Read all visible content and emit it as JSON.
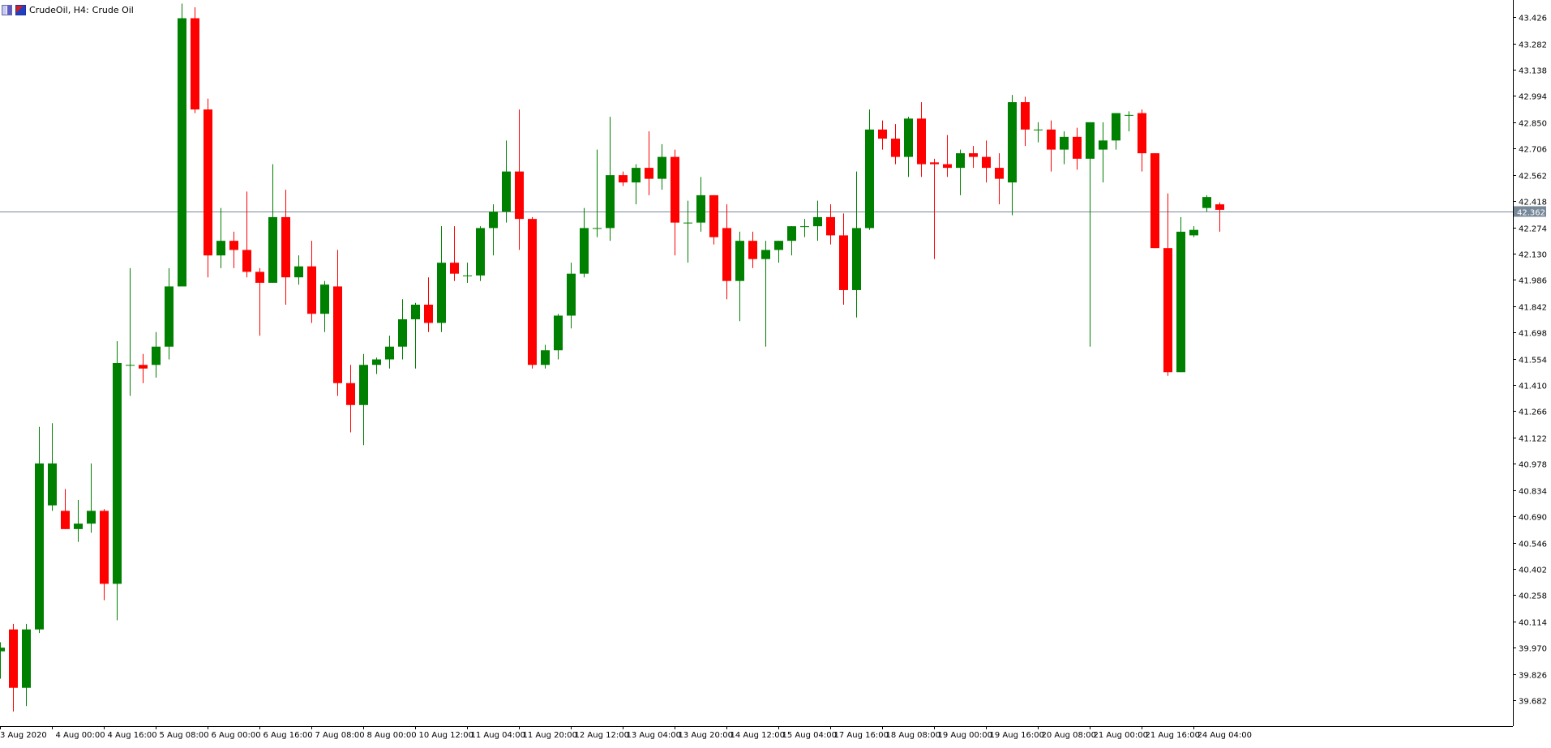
{
  "header": {
    "symbol": "CrudeOil, H4:",
    "description": "Crude Oil"
  },
  "current_price_label": "42.362",
  "colors": {
    "bull": "#008000",
    "bear": "#ff0000",
    "axis": "#000000",
    "price_line": "#778899",
    "price_label_bg": "#778899",
    "background": "#ffffff"
  },
  "chart_data": {
    "type": "candlestick",
    "title": "",
    "timeframe": "H4",
    "ylim": [
      39.54,
      43.52
    ],
    "y_ticks": [
      "43.426",
      "43.282",
      "43.138",
      "42.994",
      "42.850",
      "42.706",
      "42.562",
      "42.418",
      "42.274",
      "42.130",
      "41.986",
      "41.842",
      "41.698",
      "41.554",
      "41.410",
      "41.266",
      "41.122",
      "40.978",
      "40.834",
      "40.690",
      "40.546",
      "40.402",
      "40.258",
      "40.114",
      "39.970",
      "39.826",
      "39.682"
    ],
    "x_ticks": [
      {
        "index": 0,
        "label": "3 Aug 2020"
      },
      {
        "index": 4,
        "label": "4 Aug 00:00"
      },
      {
        "index": 8,
        "label": "4 Aug 16:00"
      },
      {
        "index": 12,
        "label": "5 Aug 08:00"
      },
      {
        "index": 16,
        "label": "6 Aug 00:00"
      },
      {
        "index": 20,
        "label": "6 Aug 16:00"
      },
      {
        "index": 24,
        "label": "7 Aug 08:00"
      },
      {
        "index": 28,
        "label": "8 Aug 00:00"
      },
      {
        "index": 32,
        "label": "10 Aug 12:00"
      },
      {
        "index": 36,
        "label": "11 Aug 04:00"
      },
      {
        "index": 40,
        "label": "11 Aug 20:00"
      },
      {
        "index": 44,
        "label": "12 Aug 12:00"
      },
      {
        "index": 48,
        "label": "13 Aug 04:00"
      },
      {
        "index": 52,
        "label": "13 Aug 20:00"
      },
      {
        "index": 56,
        "label": "14 Aug 12:00"
      },
      {
        "index": 60,
        "label": "15 Aug 04:00"
      },
      {
        "index": 64,
        "label": "17 Aug 16:00"
      },
      {
        "index": 68,
        "label": "18 Aug 08:00"
      },
      {
        "index": 72,
        "label": "19 Aug 00:00"
      },
      {
        "index": 76,
        "label": "19 Aug 16:00"
      },
      {
        "index": 80,
        "label": "20 Aug 08:00"
      },
      {
        "index": 84,
        "label": "21 Aug 00:00"
      },
      {
        "index": 88,
        "label": "21 Aug 16:00"
      },
      {
        "index": 92,
        "label": "24 Aug 04:00"
      }
    ],
    "current_price": 42.362,
    "candles": [
      {
        "o": 39.95,
        "h": 40.0,
        "l": 39.8,
        "c": 39.97
      },
      {
        "o": 40.07,
        "h": 40.1,
        "l": 39.62,
        "c": 39.75
      },
      {
        "o": 39.75,
        "h": 40.1,
        "l": 39.65,
        "c": 40.07
      },
      {
        "o": 40.07,
        "h": 41.18,
        "l": 40.05,
        "c": 40.98
      },
      {
        "o": 40.75,
        "h": 41.2,
        "l": 40.72,
        "c": 40.98
      },
      {
        "o": 40.72,
        "h": 40.84,
        "l": 40.62,
        "c": 40.62
      },
      {
        "o": 40.62,
        "h": 40.78,
        "l": 40.55,
        "c": 40.65
      },
      {
        "o": 40.65,
        "h": 40.98,
        "l": 40.6,
        "c": 40.72
      },
      {
        "o": 40.72,
        "h": 40.73,
        "l": 40.23,
        "c": 40.32
      },
      {
        "o": 40.32,
        "h": 41.65,
        "l": 40.12,
        "c": 41.53
      },
      {
        "o": 41.52,
        "h": 42.05,
        "l": 41.35,
        "c": 41.52
      },
      {
        "o": 41.52,
        "h": 41.58,
        "l": 41.42,
        "c": 41.5
      },
      {
        "o": 41.52,
        "h": 41.7,
        "l": 41.45,
        "c": 41.62
      },
      {
        "o": 41.62,
        "h": 42.05,
        "l": 41.55,
        "c": 41.95
      },
      {
        "o": 41.95,
        "h": 43.5,
        "l": 41.95,
        "c": 43.42
      },
      {
        "o": 43.42,
        "h": 43.48,
        "l": 42.9,
        "c": 42.92
      },
      {
        "o": 42.92,
        "h": 42.98,
        "l": 42.0,
        "c": 42.12
      },
      {
        "o": 42.12,
        "h": 42.38,
        "l": 42.05,
        "c": 42.2
      },
      {
        "o": 42.2,
        "h": 42.25,
        "l": 42.05,
        "c": 42.15
      },
      {
        "o": 42.15,
        "h": 42.47,
        "l": 42.0,
        "c": 42.03
      },
      {
        "o": 42.03,
        "h": 42.05,
        "l": 41.68,
        "c": 41.97
      },
      {
        "o": 41.97,
        "h": 42.62,
        "l": 41.97,
        "c": 42.33
      },
      {
        "o": 42.33,
        "h": 42.48,
        "l": 41.85,
        "c": 42.0
      },
      {
        "o": 42.0,
        "h": 42.12,
        "l": 41.96,
        "c": 42.06
      },
      {
        "o": 42.06,
        "h": 42.2,
        "l": 41.75,
        "c": 41.8
      },
      {
        "o": 41.8,
        "h": 41.98,
        "l": 41.7,
        "c": 41.96
      },
      {
        "o": 41.95,
        "h": 42.15,
        "l": 41.35,
        "c": 41.42
      },
      {
        "o": 41.42,
        "h": 41.52,
        "l": 41.15,
        "c": 41.3
      },
      {
        "o": 41.3,
        "h": 41.58,
        "l": 41.08,
        "c": 41.52
      },
      {
        "o": 41.52,
        "h": 41.56,
        "l": 41.47,
        "c": 41.55
      },
      {
        "o": 41.55,
        "h": 41.68,
        "l": 41.5,
        "c": 41.62
      },
      {
        "o": 41.62,
        "h": 41.88,
        "l": 41.55,
        "c": 41.77
      },
      {
        "o": 41.77,
        "h": 41.86,
        "l": 41.5,
        "c": 41.85
      },
      {
        "o": 41.85,
        "h": 42.0,
        "l": 41.7,
        "c": 41.75
      },
      {
        "o": 41.75,
        "h": 42.28,
        "l": 41.7,
        "c": 42.08
      },
      {
        "o": 42.08,
        "h": 42.28,
        "l": 41.98,
        "c": 42.02
      },
      {
        "o": 42.01,
        "h": 42.08,
        "l": 41.97,
        "c": 42.01
      },
      {
        "o": 42.01,
        "h": 42.28,
        "l": 41.98,
        "c": 42.27
      },
      {
        "o": 42.27,
        "h": 42.4,
        "l": 42.12,
        "c": 42.36
      },
      {
        "o": 42.36,
        "h": 42.75,
        "l": 42.3,
        "c": 42.58
      },
      {
        "o": 42.58,
        "h": 42.92,
        "l": 42.15,
        "c": 42.32
      },
      {
        "o": 42.32,
        "h": 42.33,
        "l": 41.5,
        "c": 41.52
      },
      {
        "o": 41.52,
        "h": 41.63,
        "l": 41.5,
        "c": 41.6
      },
      {
        "o": 41.6,
        "h": 41.8,
        "l": 41.55,
        "c": 41.79
      },
      {
        "o": 41.79,
        "h": 42.08,
        "l": 41.72,
        "c": 42.02
      },
      {
        "o": 42.02,
        "h": 42.38,
        "l": 42.0,
        "c": 42.27
      },
      {
        "o": 42.27,
        "h": 42.7,
        "l": 42.22,
        "c": 42.27
      },
      {
        "o": 42.27,
        "h": 42.88,
        "l": 42.2,
        "c": 42.56
      },
      {
        "o": 42.56,
        "h": 42.58,
        "l": 42.5,
        "c": 42.52
      },
      {
        "o": 42.52,
        "h": 42.62,
        "l": 42.4,
        "c": 42.6
      },
      {
        "o": 42.6,
        "h": 42.8,
        "l": 42.45,
        "c": 42.54
      },
      {
        "o": 42.54,
        "h": 42.73,
        "l": 42.48,
        "c": 42.66
      },
      {
        "o": 42.66,
        "h": 42.7,
        "l": 42.12,
        "c": 42.3
      },
      {
        "o": 42.3,
        "h": 42.42,
        "l": 42.08,
        "c": 42.3
      },
      {
        "o": 42.3,
        "h": 42.55,
        "l": 42.25,
        "c": 42.45
      },
      {
        "o": 42.45,
        "h": 42.45,
        "l": 42.18,
        "c": 42.22
      },
      {
        "o": 42.27,
        "h": 42.4,
        "l": 41.88,
        "c": 41.98
      },
      {
        "o": 41.98,
        "h": 42.25,
        "l": 41.76,
        "c": 42.2
      },
      {
        "o": 42.2,
        "h": 42.25,
        "l": 42.05,
        "c": 42.1
      },
      {
        "o": 42.1,
        "h": 42.2,
        "l": 41.62,
        "c": 42.15
      },
      {
        "o": 42.15,
        "h": 42.2,
        "l": 42.08,
        "c": 42.2
      },
      {
        "o": 42.2,
        "h": 42.28,
        "l": 42.12,
        "c": 42.28
      },
      {
        "o": 42.28,
        "h": 42.32,
        "l": 42.22,
        "c": 42.28
      },
      {
        "o": 42.28,
        "h": 42.42,
        "l": 42.2,
        "c": 42.33
      },
      {
        "o": 42.33,
        "h": 42.4,
        "l": 42.18,
        "c": 42.23
      },
      {
        "o": 42.23,
        "h": 42.35,
        "l": 41.85,
        "c": 41.93
      },
      {
        "o": 41.93,
        "h": 42.58,
        "l": 41.78,
        "c": 42.27
      },
      {
        "o": 42.27,
        "h": 42.92,
        "l": 42.26,
        "c": 42.81
      },
      {
        "o": 42.81,
        "h": 42.86,
        "l": 42.7,
        "c": 42.76
      },
      {
        "o": 42.76,
        "h": 42.84,
        "l": 42.62,
        "c": 42.66
      },
      {
        "o": 42.66,
        "h": 42.88,
        "l": 42.55,
        "c": 42.87
      },
      {
        "o": 42.87,
        "h": 42.96,
        "l": 42.55,
        "c": 42.62
      },
      {
        "o": 42.63,
        "h": 42.65,
        "l": 42.1,
        "c": 42.62
      },
      {
        "o": 42.62,
        "h": 42.78,
        "l": 42.55,
        "c": 42.6
      },
      {
        "o": 42.6,
        "h": 42.7,
        "l": 42.45,
        "c": 42.68
      },
      {
        "o": 42.68,
        "h": 42.72,
        "l": 42.6,
        "c": 42.66
      },
      {
        "o": 42.66,
        "h": 42.75,
        "l": 42.52,
        "c": 42.6
      },
      {
        "o": 42.6,
        "h": 42.68,
        "l": 42.4,
        "c": 42.54
      },
      {
        "o": 42.52,
        "h": 43.0,
        "l": 42.34,
        "c": 42.96
      },
      {
        "o": 42.96,
        "h": 42.99,
        "l": 42.72,
        "c": 42.81
      },
      {
        "o": 42.81,
        "h": 42.85,
        "l": 42.74,
        "c": 42.81
      },
      {
        "o": 42.81,
        "h": 42.86,
        "l": 42.58,
        "c": 42.7
      },
      {
        "o": 42.7,
        "h": 42.8,
        "l": 42.62,
        "c": 42.77
      },
      {
        "o": 42.77,
        "h": 42.82,
        "l": 42.59,
        "c": 42.65
      },
      {
        "o": 42.65,
        "h": 42.82,
        "l": 41.62,
        "c": 42.85
      },
      {
        "o": 42.7,
        "h": 42.85,
        "l": 42.52,
        "c": 42.75
      },
      {
        "o": 42.75,
        "h": 42.9,
        "l": 42.7,
        "c": 42.9
      },
      {
        "o": 42.89,
        "h": 42.91,
        "l": 42.8,
        "c": 42.89
      },
      {
        "o": 42.9,
        "h": 42.92,
        "l": 42.58,
        "c": 42.68
      },
      {
        "o": 42.68,
        "h": 42.68,
        "l": 42.16,
        "c": 42.16
      },
      {
        "o": 42.16,
        "h": 42.46,
        "l": 41.46,
        "c": 41.48
      },
      {
        "o": 41.48,
        "h": 42.33,
        "l": 41.48,
        "c": 42.25
      },
      {
        "o": 42.23,
        "h": 42.28,
        "l": 42.22,
        "c": 42.26
      },
      {
        "o": 42.38,
        "h": 42.45,
        "l": 42.36,
        "c": 42.44
      },
      {
        "o": 42.4,
        "h": 42.41,
        "l": 42.25,
        "c": 42.37
      }
    ]
  }
}
